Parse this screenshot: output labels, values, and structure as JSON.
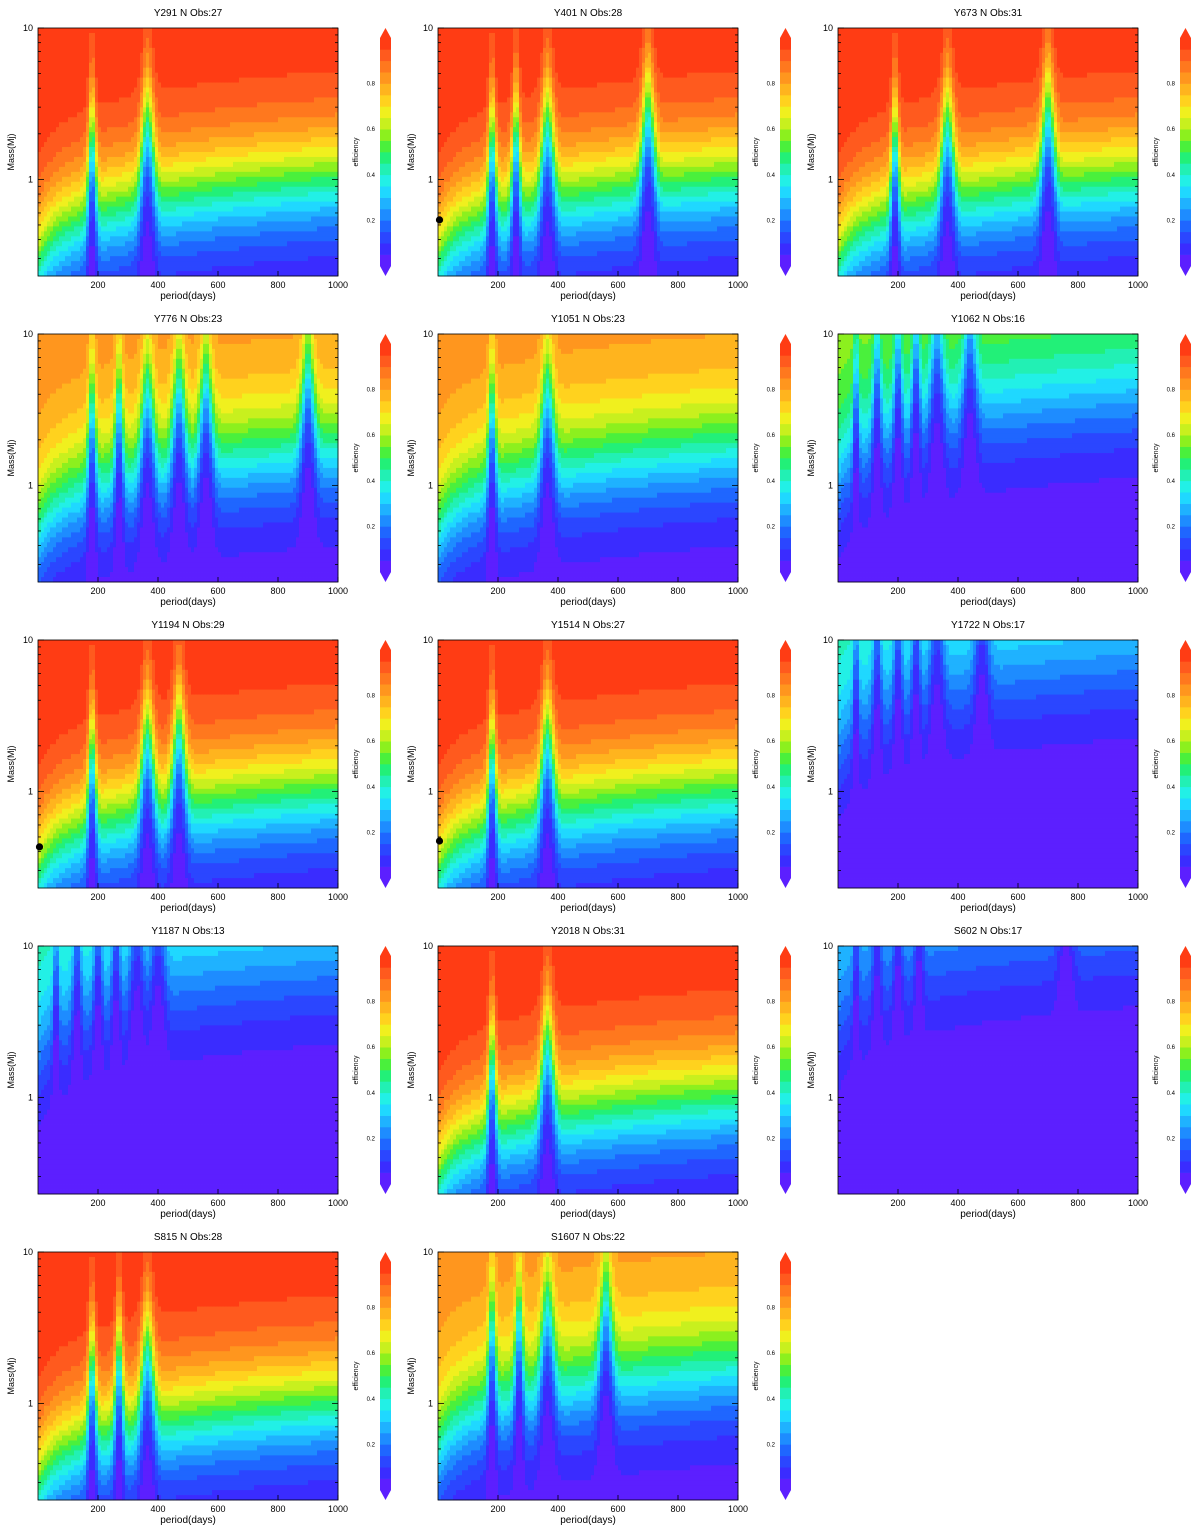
{
  "figure": {
    "colormap": [
      "#5c1fff",
      "#3a2cff",
      "#2b46ff",
      "#1f66ff",
      "#1e8cff",
      "#1fb2ff",
      "#1fd8ff",
      "#22f0e6",
      "#22f0b4",
      "#22f078",
      "#4af03c",
      "#8cf01e",
      "#c8f01e",
      "#f0f01e",
      "#ffd21e",
      "#ffb41e",
      "#ff961e",
      "#ff781e",
      "#ff5a1e",
      "#ff3c14"
    ],
    "panels": [
      {
        "title": "Y291 N Obs:27",
        "pattern": "high",
        "peaks": [
          180,
          365
        ],
        "dot": null
      },
      {
        "title": "Y401 N Obs:28",
        "pattern": "high",
        "peaks": [
          180,
          260,
          365,
          700
        ],
        "dot": {
          "x": 5,
          "y": 0.54
        }
      },
      {
        "title": "Y673 N Obs:31",
        "pattern": "high",
        "peaks": [
          190,
          365,
          700
        ],
        "dot": null
      },
      {
        "title": "Y776 N Obs:23",
        "pattern": "mid",
        "peaks": [
          180,
          270,
          365,
          470,
          560,
          900
        ],
        "dot": null
      },
      {
        "title": "Y1051 N Obs:23",
        "pattern": "mid",
        "peaks": [
          180,
          365
        ],
        "dot": null
      },
      {
        "title": "Y1062 N Obs:16",
        "pattern": "low",
        "peaks": [
          60,
          130,
          200,
          260,
          330,
          440
        ],
        "dot": null
      },
      {
        "title": "Y1194 N Obs:29",
        "pattern": "high",
        "peaks": [
          180,
          365,
          470
        ],
        "dot": {
          "x": 5,
          "y": 0.43
        }
      },
      {
        "title": "Y1514 N Obs:27",
        "pattern": "high",
        "peaks": [
          180,
          365
        ],
        "dot": {
          "x": 5,
          "y": 0.47
        }
      },
      {
        "title": "Y1722 N Obs:17",
        "pattern": "vlow",
        "peaks": [
          60,
          130,
          200,
          260,
          330,
          480
        ],
        "dot": null
      },
      {
        "title": "Y1187 N Obs:13",
        "pattern": "vlow",
        "peaks": [
          60,
          130,
          200,
          260,
          330,
          400
        ],
        "dot": null
      },
      {
        "title": "Y2018 N Obs:31",
        "pattern": "high",
        "peaks": [
          180,
          365
        ],
        "dot": null
      },
      {
        "title": "S602 N Obs:17",
        "pattern": "vvlow",
        "peaks": [
          60,
          130,
          200,
          270,
          760
        ],
        "dot": null
      },
      {
        "title": "S815 N Obs:28",
        "pattern": "high",
        "peaks": [
          180,
          270,
          365
        ],
        "dot": null
      },
      {
        "title": "S1607 N Obs:22",
        "pattern": "mid",
        "peaks": [
          180,
          270,
          365,
          560
        ],
        "dot": null
      }
    ]
  },
  "chart_data": {
    "type": "heatmap",
    "description_series": [
      "Y291 N Obs:27",
      "Y401 N Obs:28",
      "Y673 N Obs:31",
      "Y776 N Obs:23",
      "Y1051 N Obs:23",
      "Y1062 N Obs:16",
      "Y1194 N Obs:29",
      "Y1514 N Obs:27",
      "Y1722 N Obs:17",
      "Y1187 N Obs:13",
      "Y2018 N Obs:31",
      "S602 N Obs:17",
      "S815 N Obs:28",
      "S1607 N Obs:22"
    ],
    "xlabel": "period(days)",
    "ylabel": "Mass(Mj)",
    "colorbar_label": "efficiency",
    "xlim": [
      0,
      1000
    ],
    "ylim": [
      0.23,
      10
    ],
    "yscale": "log",
    "xticks": [
      200,
      400,
      600,
      800,
      1000
    ],
    "yticks": [
      1,
      10
    ],
    "colorbar_range": [
      0,
      1
    ],
    "colorbar_ticks": [
      "0.2",
      "0.4",
      "0.6",
      "0.8"
    ]
  }
}
